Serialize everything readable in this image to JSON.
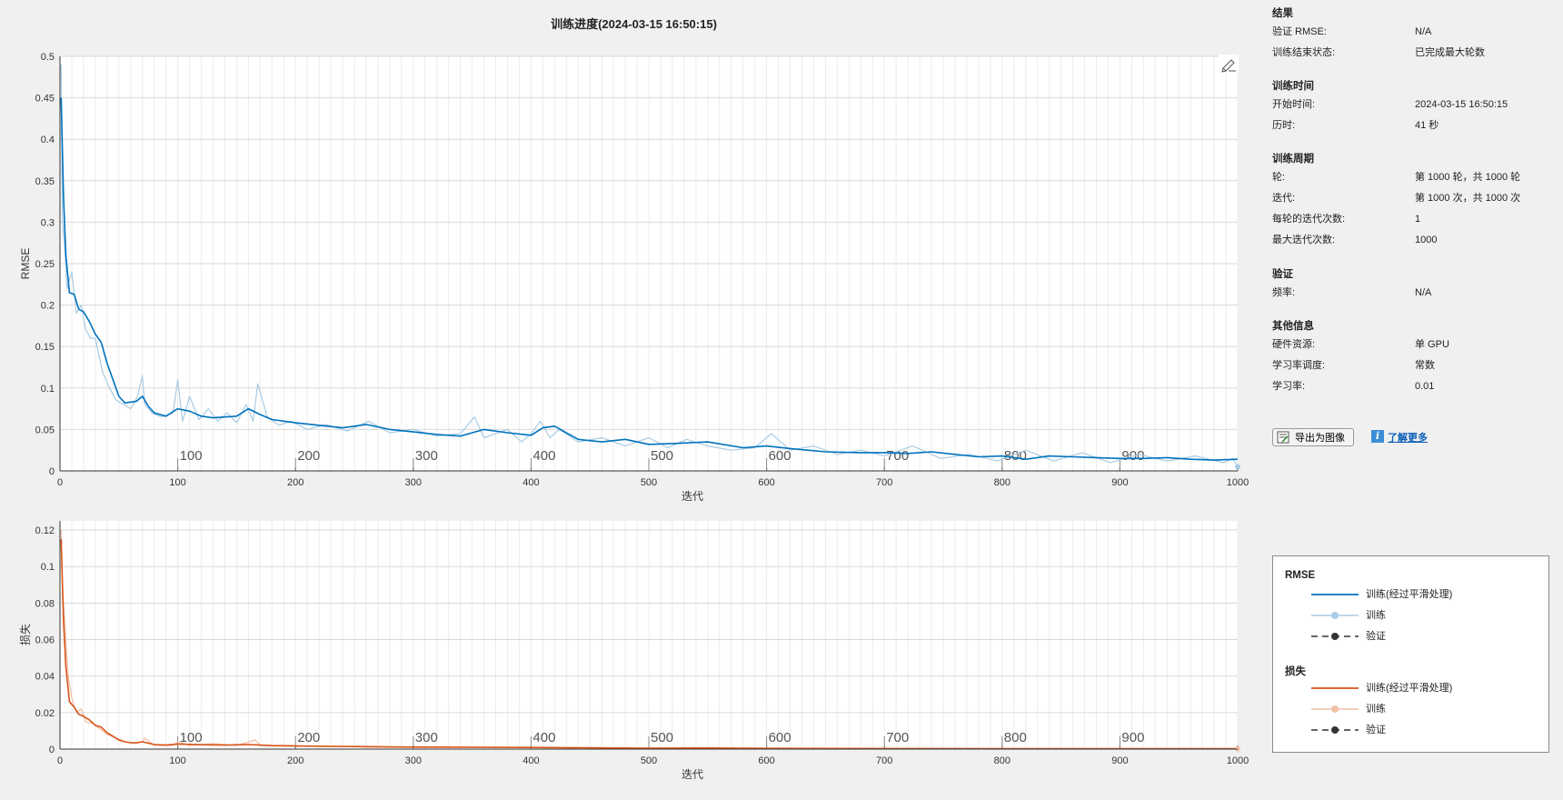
{
  "title": "训练进度(2024-03-15 16:50:15)",
  "colors": {
    "rmse_smoothed": "#0072bd",
    "rmse_raw": "#a9cbe3",
    "loss_smoothed": "#d95319",
    "loss_raw": "#f2bfa5",
    "validation": "#333333",
    "grid": "#d9d9d9"
  },
  "info": {
    "results": {
      "heading": "结果",
      "rows": [
        {
          "label": "验证 RMSE:",
          "value": "N/A"
        },
        {
          "label": "训练结束状态:",
          "value": "已完成最大轮数"
        }
      ]
    },
    "time": {
      "heading": "训练时间",
      "rows": [
        {
          "label": "开始时间:",
          "value": "2024-03-15 16:50:15"
        },
        {
          "label": "历时:",
          "value": "41 秒"
        }
      ]
    },
    "cycle": {
      "heading": "训练周期",
      "rows": [
        {
          "label": "轮:",
          "value": "第 1000 轮，共 1000 轮"
        },
        {
          "label": "迭代:",
          "value": "第 1000 次，共 1000 次"
        },
        {
          "label": "每轮的迭代次数:",
          "value": "1"
        },
        {
          "label": "最大迭代次数:",
          "value": "1000"
        }
      ]
    },
    "validation": {
      "heading": "验证",
      "rows": [
        {
          "label": "频率:",
          "value": "N/A"
        }
      ]
    },
    "other": {
      "heading": "其他信息",
      "rows": [
        {
          "label": "硬件资源:",
          "value": "单 GPU"
        },
        {
          "label": "学习率调度:",
          "value": "常数"
        },
        {
          "label": "学习率:",
          "value": "0.01"
        }
      ]
    }
  },
  "buttons": {
    "export_label": "导出为图像",
    "learn_more_label": "了解更多",
    "export_icon": "export-image-icon",
    "info_icon": "info-icon"
  },
  "legend": {
    "rmse_title": "RMSE",
    "loss_title": "损失",
    "items": {
      "smoothed": "训练(经过平滑处理)",
      "train": "训练",
      "validation": "验证"
    }
  },
  "chart_data": [
    {
      "type": "line",
      "id": "rmse",
      "xlabel": "迭代",
      "ylabel": "RMSE",
      "xlim": [
        0,
        1000
      ],
      "ylim": [
        0,
        0.5
      ],
      "x_ticks": [
        0,
        100,
        200,
        300,
        400,
        500,
        600,
        700,
        800,
        900,
        1000
      ],
      "y_ticks": [
        0,
        0.05,
        0.1,
        0.15,
        0.2,
        0.25,
        0.3,
        0.35,
        0.4,
        0.45,
        0.5
      ],
      "y_tick_labels": [
        "0",
        "0.05",
        "0.1",
        "0.15",
        "0.2",
        "0.25",
        "0.3",
        "0.35",
        "0.4",
        "0.45",
        "0.5"
      ],
      "epoch_labels": [
        "100",
        "200",
        "300",
        "400",
        "500",
        "600",
        "700",
        "800",
        "900"
      ],
      "grid": true,
      "series": [
        {
          "name": "训练(经过平滑处理)",
          "x": [
            1,
            3,
            5,
            8,
            12,
            16,
            20,
            25,
            30,
            35,
            40,
            45,
            50,
            55,
            60,
            65,
            70,
            75,
            80,
            90,
            100,
            110,
            120,
            130,
            140,
            150,
            160,
            170,
            180,
            200,
            220,
            240,
            260,
            280,
            300,
            320,
            340,
            360,
            380,
            400,
            410,
            420,
            440,
            460,
            480,
            500,
            520,
            550,
            580,
            600,
            620,
            650,
            680,
            700,
            720,
            740,
            760,
            780,
            800,
            820,
            840,
            860,
            880,
            900,
            920,
            940,
            960,
            980,
            1000
          ],
          "values": [
            0.45,
            0.33,
            0.26,
            0.215,
            0.213,
            0.195,
            0.192,
            0.18,
            0.165,
            0.155,
            0.13,
            0.11,
            0.09,
            0.082,
            0.083,
            0.084,
            0.09,
            0.078,
            0.07,
            0.066,
            0.075,
            0.072,
            0.066,
            0.064,
            0.065,
            0.066,
            0.075,
            0.068,
            0.062,
            0.058,
            0.055,
            0.052,
            0.056,
            0.05,
            0.047,
            0.044,
            0.042,
            0.05,
            0.046,
            0.043,
            0.052,
            0.054,
            0.038,
            0.035,
            0.038,
            0.032,
            0.033,
            0.035,
            0.028,
            0.03,
            0.027,
            0.023,
            0.022,
            0.022,
            0.021,
            0.023,
            0.02,
            0.017,
            0.018,
            0.014,
            0.018,
            0.017,
            0.016,
            0.015,
            0.015,
            0.016,
            0.014,
            0.013,
            0.014
          ]
        },
        {
          "name": "训练",
          "x": [
            1,
            2,
            4,
            6,
            10,
            14,
            18,
            22,
            26,
            30,
            36,
            42,
            48,
            54,
            60,
            66,
            70,
            72,
            78,
            86,
            96,
            100,
            104,
            110,
            118,
            126,
            134,
            142,
            150,
            158,
            164,
            168,
            176,
            186,
            196,
            210,
            226,
            244,
            262,
            280,
            300,
            320,
            340,
            352,
            360,
            380,
            392,
            400,
            408,
            416,
            424,
            440,
            460,
            480,
            500,
            516,
            532,
            550,
            570,
            590,
            604,
            620,
            640,
            660,
            680,
            700,
            724,
            748,
            772,
            796,
            820,
            844,
            868,
            892,
            916,
            940,
            964,
            988,
            996,
            1000
          ],
          "values": [
            0.49,
            0.3,
            0.27,
            0.22,
            0.24,
            0.19,
            0.2,
            0.17,
            0.16,
            0.16,
            0.12,
            0.1,
            0.085,
            0.08,
            0.075,
            0.09,
            0.115,
            0.08,
            0.07,
            0.065,
            0.07,
            0.11,
            0.06,
            0.09,
            0.062,
            0.075,
            0.06,
            0.07,
            0.058,
            0.08,
            0.06,
            0.105,
            0.065,
            0.055,
            0.06,
            0.05,
            0.056,
            0.048,
            0.06,
            0.046,
            0.05,
            0.042,
            0.045,
            0.065,
            0.04,
            0.05,
            0.035,
            0.045,
            0.06,
            0.04,
            0.05,
            0.035,
            0.04,
            0.03,
            0.04,
            0.028,
            0.038,
            0.03,
            0.025,
            0.028,
            0.045,
            0.025,
            0.03,
            0.02,
            0.025,
            0.018,
            0.03,
            0.015,
            0.02,
            0.012,
            0.025,
            0.012,
            0.022,
            0.01,
            0.02,
            0.012,
            0.018,
            0.01,
            0.015,
            0.005
          ]
        }
      ]
    },
    {
      "type": "line",
      "id": "loss",
      "xlabel": "迭代",
      "ylabel": "损失",
      "xlim": [
        0,
        1000
      ],
      "ylim": [
        0,
        0.125
      ],
      "x_ticks": [
        0,
        100,
        200,
        300,
        400,
        500,
        600,
        700,
        800,
        900,
        1000
      ],
      "y_ticks": [
        0,
        0.02,
        0.04,
        0.06,
        0.08,
        0.1,
        0.12
      ],
      "y_tick_labels": [
        "0",
        "0.02",
        "0.04",
        "0.06",
        "0.08",
        "0.1",
        "0.12"
      ],
      "epoch_labels": [
        "100",
        "200",
        "300",
        "400",
        "500",
        "600",
        "700",
        "800",
        "900"
      ],
      "grid": true,
      "series": [
        {
          "name": "训练(经过平滑处理)",
          "x": [
            1,
            3,
            5,
            8,
            12,
            16,
            20,
            25,
            30,
            35,
            40,
            45,
            50,
            55,
            60,
            65,
            70,
            80,
            90,
            100,
            120,
            140,
            160,
            170,
            180,
            200,
            250,
            300,
            350,
            400,
            450,
            500,
            550,
            600,
            700,
            800,
            900,
            1000
          ],
          "values": [
            0.115,
            0.07,
            0.045,
            0.026,
            0.023,
            0.019,
            0.018,
            0.016,
            0.013,
            0.012,
            0.009,
            0.007,
            0.005,
            0.004,
            0.0035,
            0.0035,
            0.004,
            0.0025,
            0.0022,
            0.0028,
            0.0024,
            0.0022,
            0.0025,
            0.0022,
            0.0019,
            0.0017,
            0.0014,
            0.0011,
            0.001,
            0.0009,
            0.0007,
            0.0005,
            0.0006,
            0.0004,
            0.0003,
            0.0002,
            0.0002,
            0.0002
          ]
        },
        {
          "name": "训练",
          "x": [
            1,
            2,
            4,
            7,
            10,
            14,
            18,
            22,
            28,
            34,
            40,
            48,
            56,
            64,
            70,
            72,
            80,
            96,
            100,
            110,
            130,
            150,
            166,
            170,
            190,
            220,
            260,
            300,
            350,
            400,
            450,
            500,
            600,
            700,
            800,
            900,
            1000
          ],
          "values": [
            0.12,
            0.09,
            0.07,
            0.04,
            0.028,
            0.02,
            0.022,
            0.015,
            0.014,
            0.011,
            0.008,
            0.006,
            0.004,
            0.003,
            0.004,
            0.006,
            0.002,
            0.002,
            0.004,
            0.002,
            0.003,
            0.002,
            0.005,
            0.002,
            0.002,
            0.0015,
            0.0012,
            0.001,
            0.0012,
            0.0008,
            0.0006,
            0.0005,
            0.0004,
            0.0003,
            0.0002,
            0.0002,
            0.0002
          ]
        }
      ]
    }
  ]
}
